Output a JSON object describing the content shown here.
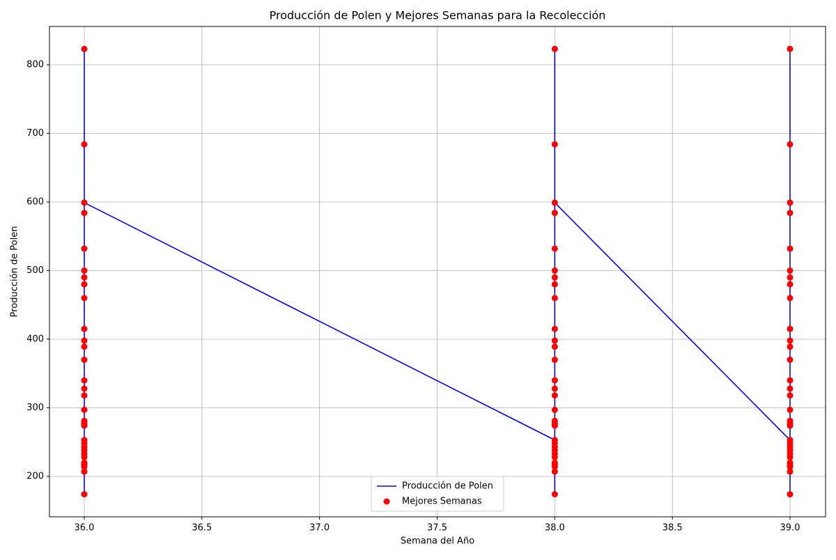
{
  "chart_data": {
    "type": "line",
    "title": "Producción de Polen y Mejores Semanas para la Recolección",
    "x_label": "Semana del Año",
    "y_label": "Producción de Polen",
    "x": [
      36,
      36,
      36,
      36,
      36,
      36,
      36,
      36,
      36,
      36,
      36,
      36,
      36,
      36,
      36,
      36,
      36,
      36,
      36,
      36,
      36,
      36,
      36,
      36,
      36,
      36,
      36,
      36,
      36,
      36,
      36,
      38,
      38,
      38,
      38,
      38,
      38,
      38,
      38,
      38,
      38,
      38,
      38,
      38,
      38,
      38,
      38,
      38,
      38,
      38,
      38,
      38,
      38,
      38,
      38,
      38,
      38,
      38,
      38,
      38,
      38,
      38,
      39,
      39,
      39,
      39,
      39,
      39,
      39,
      39,
      39,
      39,
      39,
      39,
      39,
      39,
      39,
      39,
      39,
      39,
      39,
      39,
      39,
      39,
      39,
      39,
      39,
      39,
      39,
      39,
      39,
      39,
      39
    ],
    "series": [
      {
        "name": "Producción de Polen",
        "type": "line",
        "color": "#0000ff",
        "values": [
          253,
          823,
          174,
          684,
          207,
          584,
          214,
          532,
          217,
          500,
          220,
          490,
          228,
          480,
          233,
          460,
          238,
          415,
          243,
          398,
          248,
          389,
          274,
          370,
          277,
          340,
          281,
          328,
          297,
          318,
          599,
          253,
          823,
          174,
          684,
          207,
          584,
          214,
          532,
          217,
          500,
          220,
          490,
          228,
          480,
          233,
          460,
          238,
          415,
          243,
          398,
          248,
          389,
          274,
          370,
          277,
          340,
          281,
          328,
          297,
          318,
          599,
          253,
          823,
          174,
          684,
          207,
          584,
          214,
          532,
          217,
          500,
          220,
          490,
          228,
          480,
          233,
          460,
          238,
          415,
          243,
          398,
          248,
          389,
          274,
          370,
          277,
          340,
          281,
          328,
          297,
          318,
          599
        ]
      },
      {
        "name": "Mejores Semanas",
        "type": "scatter",
        "color": "#ff0000",
        "values": [
          253,
          823,
          174,
          684,
          207,
          584,
          214,
          532,
          217,
          500,
          220,
          490,
          228,
          480,
          233,
          460,
          238,
          415,
          243,
          398,
          248,
          389,
          274,
          370,
          277,
          340,
          281,
          328,
          297,
          318,
          599,
          253,
          823,
          174,
          684,
          207,
          584,
          214,
          532,
          217,
          500,
          220,
          490,
          228,
          480,
          233,
          460,
          238,
          415,
          243,
          398,
          248,
          389,
          274,
          370,
          277,
          340,
          281,
          328,
          297,
          318,
          599,
          253,
          823,
          174,
          684,
          207,
          584,
          214,
          532,
          217,
          500,
          220,
          490,
          228,
          480,
          233,
          460,
          238,
          415,
          243,
          398,
          248,
          389,
          274,
          370,
          277,
          340,
          281,
          328,
          297,
          318,
          599
        ]
      }
    ],
    "xlim": [
      35.852,
      39.151
    ],
    "ylim": [
      141.1,
      855.8
    ],
    "xticks": [
      {
        "value": 36,
        "label": "36.0"
      },
      {
        "value": 36.5,
        "label": "36.5"
      },
      {
        "value": 37,
        "label": "37.0"
      },
      {
        "value": 37.5,
        "label": "37.5"
      },
      {
        "value": 38,
        "label": "38.0"
      },
      {
        "value": 38.5,
        "label": "38.5"
      },
      {
        "value": 39,
        "label": "39.0"
      }
    ],
    "yticks": [
      200,
      300,
      400,
      500,
      600,
      700,
      800
    ],
    "grid": true,
    "legend": "lower center"
  }
}
